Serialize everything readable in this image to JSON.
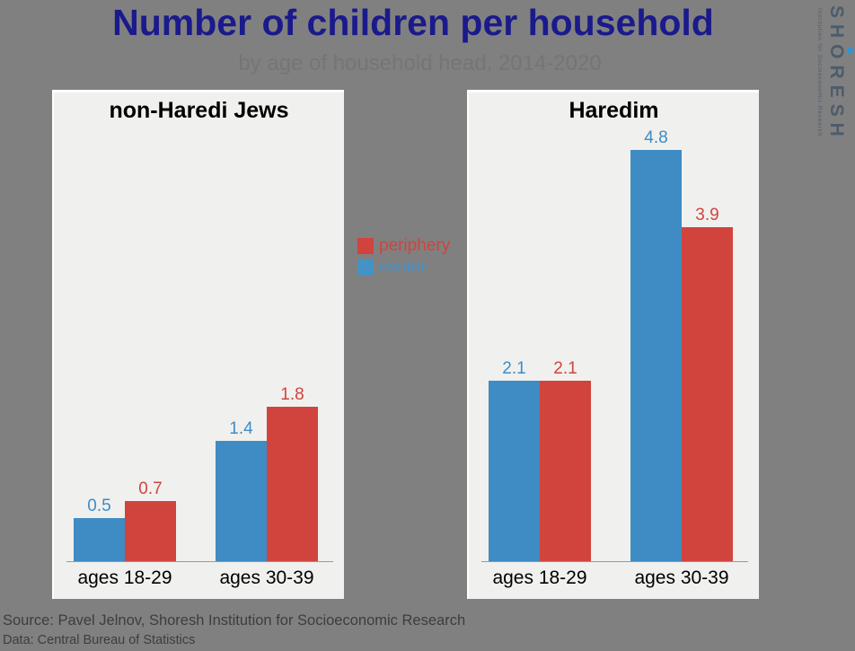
{
  "page": {
    "background": "#808080",
    "title": "Number of children per household",
    "title_color": "#1a1a8c",
    "subtitle": "by age of household head, 2014-2020",
    "subtitle_color": "#757575"
  },
  "logo": {
    "wordmark": "SHORESH",
    "tagline": "Institution for Socioeconomic Research",
    "color": "#4d5c6a",
    "dot_color": "#2f95da"
  },
  "legend": {
    "items": [
      {
        "label": "periphery",
        "color": "#d0443d"
      },
      {
        "label": "center",
        "color": "#4592c7"
      }
    ]
  },
  "chart_data": {
    "type": "bar",
    "ylim": [
      0,
      5
    ],
    "grid": false,
    "value_labels": true,
    "legend_position": "center-between-panels",
    "axis_line_color": "#999996",
    "panel_background": "#f0f0ee",
    "categories": [
      "ages 18-29",
      "ages 30-39"
    ],
    "panels": [
      {
        "title": "non-Haredi Jews",
        "series": [
          {
            "name": "center",
            "color": "#3e8cc3",
            "values": [
              0.5,
              1.4
            ]
          },
          {
            "name": "periphery",
            "color": "#d1443e",
            "values": [
              0.7,
              1.8
            ]
          }
        ]
      },
      {
        "title": "Haredim",
        "series": [
          {
            "name": "center",
            "color": "#3e8cc3",
            "values": [
              2.1,
              4.8
            ]
          },
          {
            "name": "periphery",
            "color": "#d1443e",
            "values": [
              2.1,
              3.9
            ]
          }
        ]
      }
    ]
  },
  "footer": {
    "source_line": "Source: Pavel Jelnov, Shoresh Institution for Socioeconomic Research",
    "data_line": "Data: Central Bureau of Statistics",
    "color": "#3d3d3d"
  }
}
